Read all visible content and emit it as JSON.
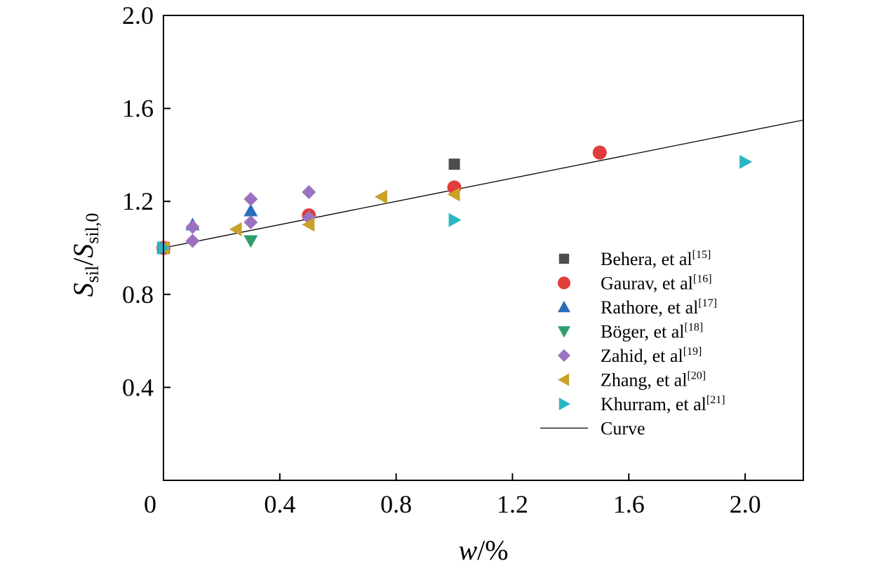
{
  "chart_data": {
    "type": "scatter",
    "xlabel": {
      "italic": "w",
      "suffix": "/%"
    },
    "ylabel": {
      "main1": "S",
      "sub1": "sil",
      "slash": "/",
      "main2": "S",
      "sub2": "sil,0"
    },
    "xlim": [
      0,
      2.2
    ],
    "ylim": [
      0,
      2.0
    ],
    "xticks": [
      0,
      0.4,
      0.8,
      1.2,
      1.6,
      2.0
    ],
    "xtick_labels": [
      "0",
      "0.4",
      "0.8",
      "1.2",
      "1.6",
      "2.0"
    ],
    "yticks": [
      0.4,
      0.8,
      1.2,
      1.6,
      2.0
    ],
    "ytick_labels": [
      "0.4",
      "0.8",
      "1.2",
      "1.6",
      "2.0"
    ],
    "grid": false,
    "legend_position": "right",
    "series": [
      {
        "name": "Behera, et al",
        "ref": "[15]",
        "marker": "square",
        "color": "#4d4d4d",
        "points": [
          {
            "x": 0,
            "y": 1.0
          },
          {
            "x": 1.0,
            "y": 1.36
          }
        ]
      },
      {
        "name": "Gaurav, et al",
        "ref": "[16]",
        "marker": "circle",
        "color": "#e03c3c",
        "points": [
          {
            "x": 0,
            "y": 1.0
          },
          {
            "x": 0.5,
            "y": 1.14
          },
          {
            "x": 1.0,
            "y": 1.26
          },
          {
            "x": 1.5,
            "y": 1.41
          }
        ]
      },
      {
        "name": "Rathore, et al",
        "ref": "[17]",
        "marker": "triangle-up",
        "color": "#2a6ebb",
        "points": [
          {
            "x": 0,
            "y": 1.0
          },
          {
            "x": 0.1,
            "y": 1.1
          },
          {
            "x": 0.3,
            "y": 1.16
          }
        ]
      },
      {
        "name": "Böger, et al",
        "ref": "[18]",
        "marker": "triangle-down",
        "color": "#2e9e6b",
        "points": [
          {
            "x": 0,
            "y": 1.0
          },
          {
            "x": 0.3,
            "y": 1.03
          }
        ]
      },
      {
        "name": "Zahid, et al",
        "ref": "[19]",
        "marker": "diamond",
        "color": "#9b72c0",
        "points": [
          {
            "x": 0,
            "y": 1.0
          },
          {
            "x": 0.1,
            "y": 1.03
          },
          {
            "x": 0.1,
            "y": 1.09
          },
          {
            "x": 0.3,
            "y": 1.11
          },
          {
            "x": 0.3,
            "y": 1.21
          },
          {
            "x": 0.5,
            "y": 1.13
          },
          {
            "x": 0.5,
            "y": 1.24
          }
        ]
      },
      {
        "name": "Zhang, et al",
        "ref": "[20]",
        "marker": "triangle-left",
        "color": "#c9a227",
        "points": [
          {
            "x": 0,
            "y": 1.0
          },
          {
            "x": 0.25,
            "y": 1.08
          },
          {
            "x": 0.5,
            "y": 1.1
          },
          {
            "x": 0.75,
            "y": 1.22
          },
          {
            "x": 1.0,
            "y": 1.23
          }
        ]
      },
      {
        "name": "Khurram, et al",
        "ref": "[21]",
        "marker": "triangle-right",
        "color": "#2bb5c4",
        "points": [
          {
            "x": 0,
            "y": 1.0
          },
          {
            "x": 1.0,
            "y": 1.12
          },
          {
            "x": 2.0,
            "y": 1.37
          }
        ]
      }
    ],
    "curve": {
      "name": "Curve",
      "color": "#000000",
      "points": [
        {
          "x": 0,
          "y": 1.0
        },
        {
          "x": 2.2,
          "y": 1.55
        }
      ]
    }
  }
}
